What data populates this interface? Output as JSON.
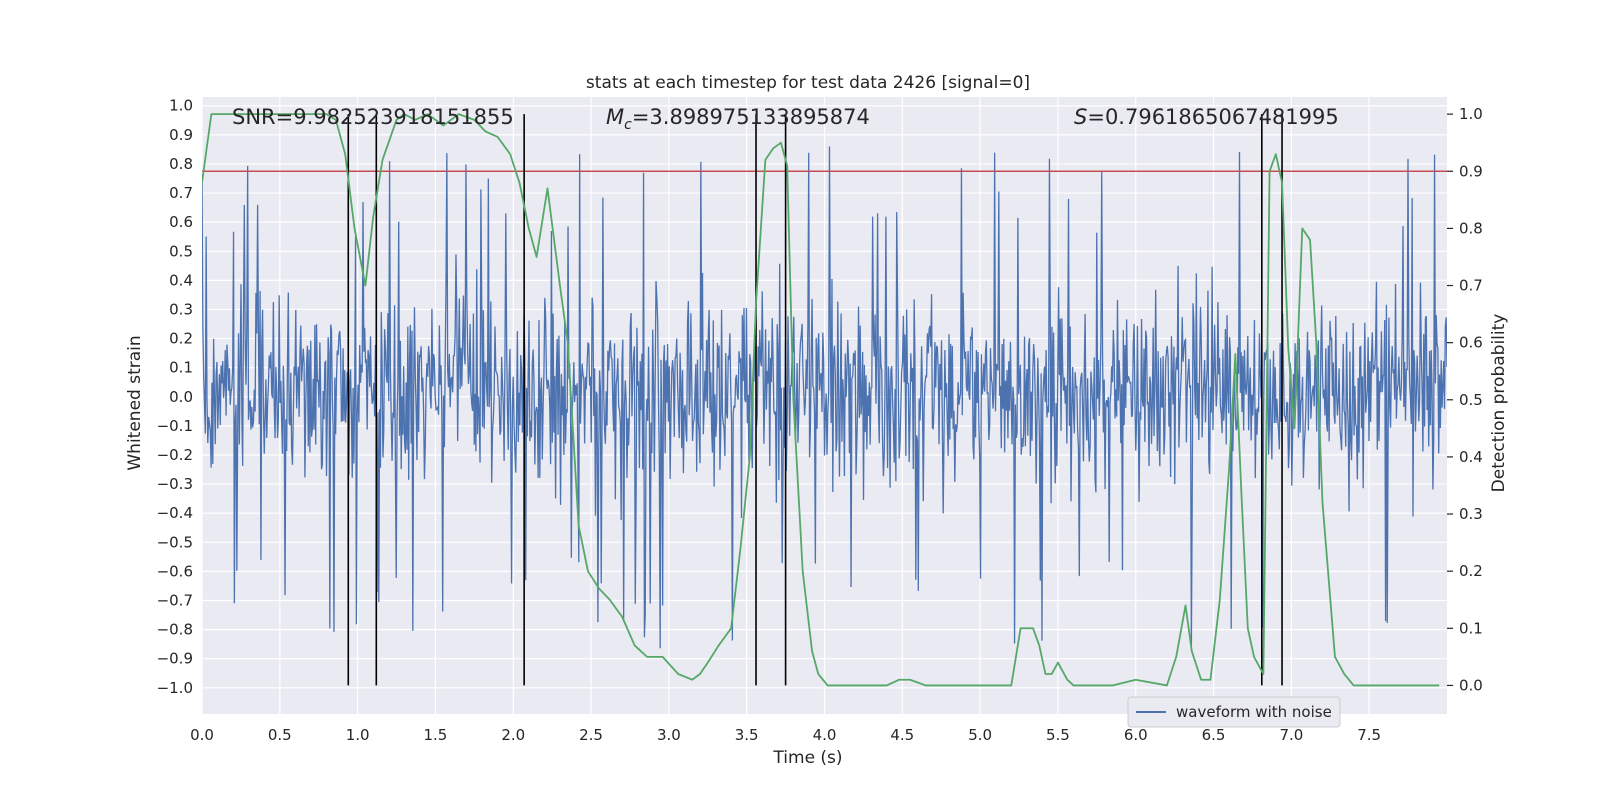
{
  "chart_data": {
    "type": "line",
    "title": "stats at each timestep for test data 2426 [signal=0]",
    "xlabel": "Time (s)",
    "ylabel_left": "Whitened strain",
    "ylabel_right": "Detection probability",
    "xlim": [
      0,
      8
    ],
    "ylim_left": [
      -1.09,
      1.03
    ],
    "ylim_right": [
      -0.05,
      1.03
    ],
    "x_ticks": [
      0.0,
      0.5,
      1.0,
      1.5,
      2.0,
      2.5,
      3.0,
      3.5,
      4.0,
      4.5,
      5.0,
      5.5,
      6.0,
      6.5,
      7.0,
      7.5
    ],
    "x_tick_labels": [
      "0.0",
      "0.5",
      "1.0",
      "1.5",
      "2.0",
      "2.5",
      "3.0",
      "3.5",
      "4.0",
      "4.5",
      "5.0",
      "5.5",
      "6.0",
      "6.5",
      "7.0",
      "7.5"
    ],
    "y_left_ticks": [
      -1.0,
      -0.9,
      -0.8,
      -0.7,
      -0.6,
      -0.5,
      -0.4,
      -0.3,
      -0.2,
      -0.1,
      0.0,
      0.1,
      0.2,
      0.3,
      0.4,
      0.5,
      0.6,
      0.7,
      0.8,
      0.9,
      1.0
    ],
    "y_left_tick_labels": [
      "−1.0",
      "−0.9",
      "−0.8",
      "−0.7",
      "−0.6",
      "−0.5",
      "−0.4",
      "−0.3",
      "−0.2",
      "−0.1",
      "0.0",
      "0.1",
      "0.2",
      "0.3",
      "0.4",
      "0.5",
      "0.6",
      "0.7",
      "0.8",
      "0.9",
      "1.0"
    ],
    "y_right_ticks": [
      0.0,
      0.1,
      0.2,
      0.3,
      0.4,
      0.5,
      0.6,
      0.7,
      0.8,
      0.9,
      1.0
    ],
    "y_right_tick_labels": [
      "0.0",
      "0.1",
      "0.2",
      "0.3",
      "0.4",
      "0.5",
      "0.6",
      "0.7",
      "0.8",
      "0.9",
      "1.0"
    ],
    "annotations": {
      "snr": "SNR=9.982523918151855",
      "mc_symbol": "M",
      "mc_subscript": "c",
      "mc_value": "=3.898975133895874",
      "s_symbol": "S",
      "s_value": "=0.7961865067481995"
    },
    "legend": {
      "label": "waveform with noise",
      "position": "lower-right"
    },
    "threshold": {
      "value": 0.9,
      "axis": "right",
      "color": "#c44e52"
    },
    "vertical_markers": [
      0.94,
      1.12,
      2.07,
      3.56,
      3.75,
      6.81,
      6.94
    ],
    "waveform": {
      "name": "waveform with noise",
      "color": "#4c72b0",
      "t_range": [
        0.0,
        8.0
      ],
      "typical_envelope": [
        -0.45,
        0.5
      ],
      "peak_max": 0.93,
      "peak_min": -0.98
    },
    "series": [
      {
        "name": "detection probability",
        "axis": "right",
        "color": "#55a868",
        "x": [
          0.0,
          0.06,
          0.12,
          0.2,
          0.3,
          0.5,
          0.7,
          0.8,
          0.86,
          0.92,
          0.98,
          1.05,
          1.1,
          1.16,
          1.25,
          1.3,
          1.37,
          1.45,
          1.55,
          1.65,
          1.75,
          1.82,
          1.9,
          1.98,
          2.04,
          2.1,
          2.15,
          2.22,
          2.3,
          2.35,
          2.42,
          2.48,
          2.55,
          2.62,
          2.7,
          2.78,
          2.82,
          2.86,
          2.96,
          3.06,
          3.15,
          3.2,
          3.25,
          3.32,
          3.4,
          3.46,
          3.52,
          3.56,
          3.62,
          3.67,
          3.72,
          3.76,
          3.8,
          3.86,
          3.92,
          3.96,
          4.02,
          4.1,
          4.25,
          4.4,
          4.48,
          4.55,
          4.65,
          4.8,
          5.0,
          5.1,
          5.2,
          5.26,
          5.3,
          5.34,
          5.38,
          5.42,
          5.46,
          5.5,
          5.56,
          5.6,
          5.7,
          5.85,
          6.0,
          6.2,
          6.26,
          6.32,
          6.36,
          6.42,
          6.48,
          6.54,
          6.6,
          6.64,
          6.68,
          6.72,
          6.76,
          6.82,
          6.86,
          6.9,
          6.94,
          6.98,
          7.02,
          7.07,
          7.12,
          7.16,
          7.2,
          7.28,
          7.34,
          7.4,
          7.6,
          7.8,
          7.95
        ],
        "values": [
          0.88,
          1.0,
          1.0,
          1.0,
          1.0,
          1.0,
          1.0,
          1.0,
          0.99,
          0.93,
          0.8,
          0.7,
          0.82,
          0.92,
          0.99,
          1.0,
          0.99,
          1.0,
          0.98,
          1.0,
          0.99,
          0.97,
          0.96,
          0.93,
          0.88,
          0.8,
          0.75,
          0.87,
          0.7,
          0.6,
          0.28,
          0.2,
          0.17,
          0.15,
          0.12,
          0.07,
          0.06,
          0.05,
          0.05,
          0.02,
          0.01,
          0.02,
          0.04,
          0.07,
          0.1,
          0.24,
          0.4,
          0.67,
          0.92,
          0.94,
          0.95,
          0.91,
          0.5,
          0.2,
          0.06,
          0.02,
          0.0,
          0.0,
          0.0,
          0.0,
          0.01,
          0.01,
          0.0,
          0.0,
          0.0,
          0.0,
          0.0,
          0.1,
          0.1,
          0.1,
          0.07,
          0.02,
          0.02,
          0.04,
          0.01,
          0.0,
          0.0,
          0.0,
          0.01,
          0.0,
          0.05,
          0.14,
          0.06,
          0.01,
          0.01,
          0.15,
          0.38,
          0.58,
          0.33,
          0.1,
          0.05,
          0.02,
          0.9,
          0.93,
          0.88,
          0.59,
          0.45,
          0.8,
          0.78,
          0.6,
          0.32,
          0.05,
          0.02,
          0.0,
          0.0,
          0.0,
          0.0
        ]
      }
    ]
  }
}
